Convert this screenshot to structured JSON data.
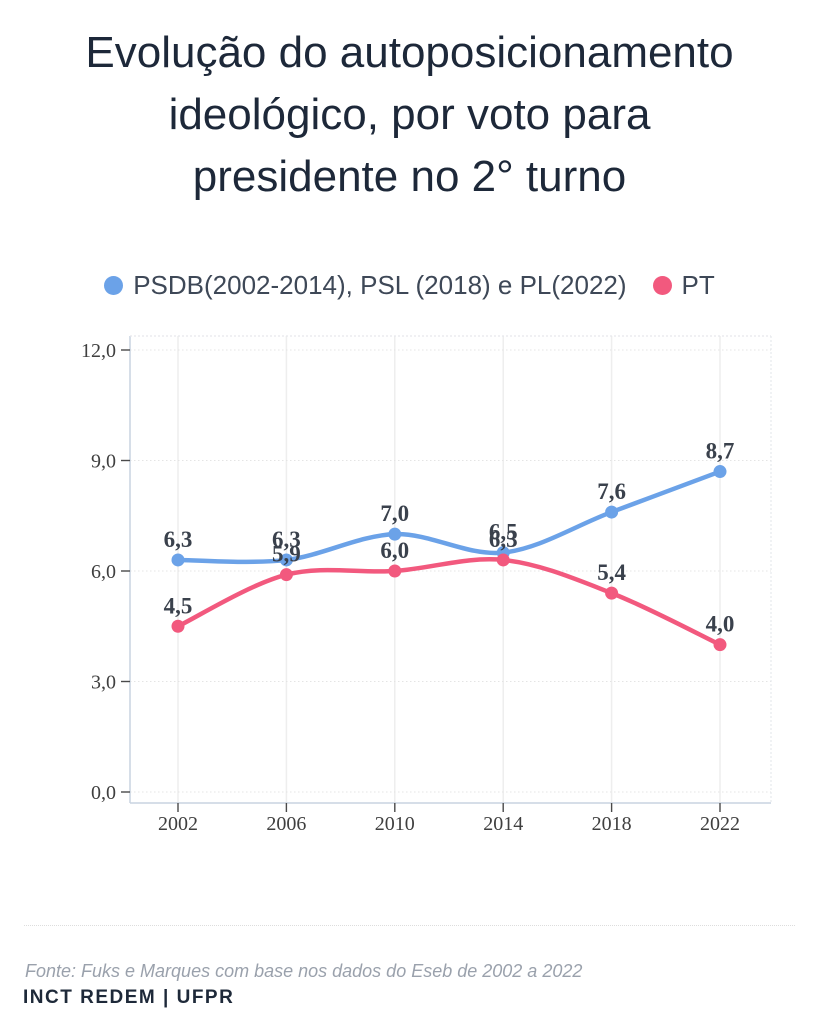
{
  "title": {
    "lines": [
      "Evolução do autoposicionamento",
      "ideológico, por voto para",
      "presidente no 2° turno"
    ]
  },
  "footer": {
    "source": "Fonte: Fuks e Marques com base nos dados do Eseb de 2002 a 2022",
    "credit": "INCT REDEM | UFPR"
  },
  "chart_data": {
    "type": "line",
    "x": [
      2002,
      2006,
      2010,
      2014,
      2018,
      2022
    ],
    "x_tick_labels": [
      "2002",
      "2006",
      "2010",
      "2014",
      "2018",
      "2022"
    ],
    "series": [
      {
        "name": "PSDB(2002-2014), PSL (2018) e PL(2022)",
        "color": "#6ba2e8",
        "values": [
          6.3,
          6.3,
          7.0,
          6.5,
          7.6,
          8.7
        ],
        "labels": [
          "6,3",
          "6,3",
          "7,0",
          "6,5",
          "7,6",
          "8,7"
        ]
      },
      {
        "name": "PT",
        "color": "#f2597e",
        "values": [
          4.5,
          5.9,
          6.0,
          6.3,
          5.4,
          4.0
        ],
        "labels": [
          "4,5",
          "5,9",
          "6,0",
          "6,3",
          "5,4",
          "4,0"
        ]
      }
    ],
    "ylim": [
      0,
      12
    ],
    "y_ticks": {
      "values": [
        0,
        3,
        6,
        9,
        12
      ],
      "labels": [
        "0,0",
        "3,0",
        "6,0",
        "9,0",
        "12,0"
      ]
    },
    "grid": true,
    "legend_position": "top"
  }
}
